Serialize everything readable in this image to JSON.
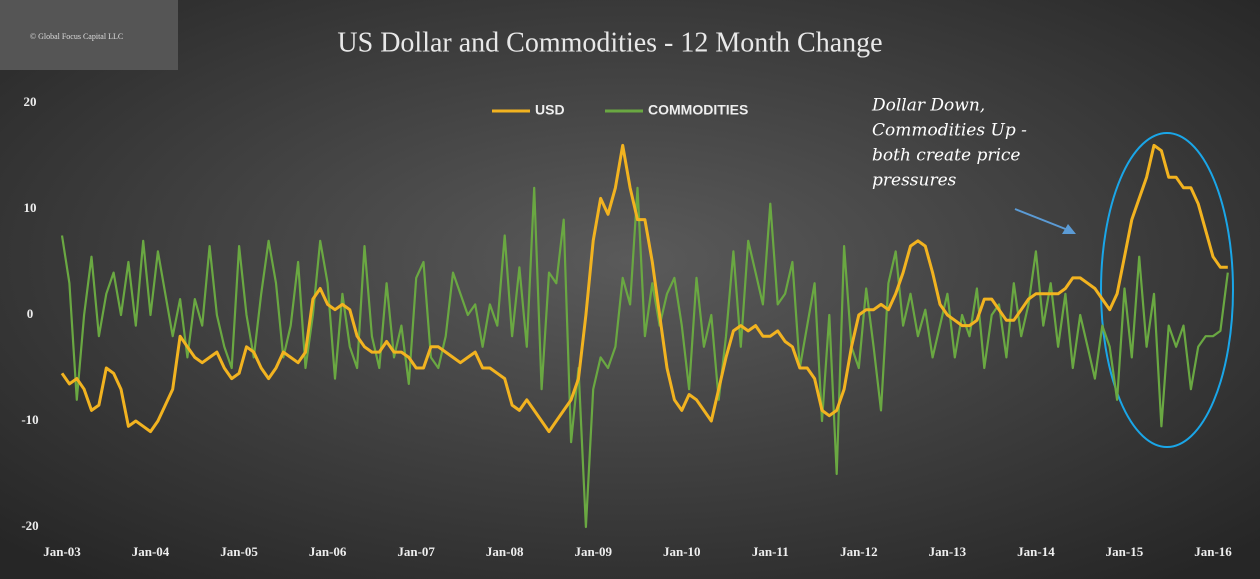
{
  "chart_data": {
    "type": "line",
    "copyright": "© Global Focus Capital LLC",
    "title": "US Dollar and Commodities  - 12 Month Change",
    "annotation": [
      "Dollar Down,",
      "Commodities Up -",
      "both create price",
      "pressures"
    ],
    "categories": [
      "Jan-03",
      null,
      null,
      null,
      null,
      null,
      null,
      null,
      null,
      null,
      null,
      null,
      "Jan-04",
      null,
      null,
      null,
      null,
      null,
      null,
      null,
      null,
      null,
      null,
      null,
      "Jan-05",
      null,
      null,
      null,
      null,
      null,
      null,
      null,
      null,
      null,
      null,
      null,
      "Jan-06",
      null,
      null,
      null,
      null,
      null,
      null,
      null,
      null,
      null,
      null,
      null,
      "Jan-07",
      null,
      null,
      null,
      null,
      null,
      null,
      null,
      null,
      null,
      null,
      null,
      "Jan-08",
      null,
      null,
      null,
      null,
      null,
      null,
      null,
      null,
      null,
      null,
      null,
      "Jan-09",
      null,
      null,
      null,
      null,
      null,
      null,
      null,
      null,
      null,
      null,
      null,
      "Jan-10",
      null,
      null,
      null,
      null,
      null,
      null,
      null,
      null,
      null,
      null,
      null,
      "Jan-11",
      null,
      null,
      null,
      null,
      null,
      null,
      null,
      null,
      null,
      null,
      null,
      "Jan-12",
      null,
      null,
      null,
      null,
      null,
      null,
      null,
      null,
      null,
      null,
      null,
      "Jan-13",
      null,
      null,
      null,
      null,
      null,
      null,
      null,
      null,
      null,
      null,
      null,
      "Jan-14",
      null,
      null,
      null,
      null,
      null,
      null,
      null,
      null,
      null,
      null,
      null,
      "Jan-15",
      null,
      null,
      null,
      null,
      null,
      null,
      null,
      null,
      null,
      null,
      null,
      "Jan-16",
      null,
      null
    ],
    "series": [
      {
        "name": "USD",
        "color": "#f2b320",
        "values": [
          -5.5,
          -6.5,
          -6,
          -7,
          -9,
          -8.5,
          -5,
          -5.5,
          -7,
          -10.5,
          -10,
          -10.5,
          -11,
          -10,
          -8.5,
          -7,
          -2,
          -3,
          -4,
          -4.5,
          -4,
          -3.5,
          -5,
          -6,
          -5.5,
          -3,
          -3.5,
          -5,
          -6,
          -5,
          -3.5,
          -4,
          -4.5,
          -3.5,
          1.5,
          2.5,
          1,
          0.5,
          1,
          0.5,
          -2,
          -3,
          -3.5,
          -3.5,
          -2.5,
          -3.5,
          -3.5,
          -4,
          -5,
          -5,
          -3,
          -3,
          -3.5,
          -4,
          -4.5,
          -4,
          -3.5,
          -5,
          -5,
          -5.5,
          -6,
          -8.5,
          -9,
          -8,
          -9,
          -10,
          -11,
          -10,
          -9,
          -8,
          -6,
          0,
          7,
          11,
          9.5,
          12,
          16,
          12,
          9,
          9,
          5,
          0,
          -5,
          -8,
          -9,
          -7.5,
          -8,
          -9,
          -10,
          -7,
          -4,
          -1.5,
          -1,
          -1.5,
          -1,
          -2,
          -2,
          -1.5,
          -2.5,
          -3,
          -5,
          -5,
          -6,
          -9,
          -9.5,
          -9,
          -7,
          -3,
          0,
          0.5,
          0.5,
          1,
          0.5,
          2,
          4,
          6.5,
          7,
          6.5,
          4,
          1,
          0,
          -0.5,
          -1,
          -1,
          -0.5,
          1.5,
          1.5,
          0.5,
          -0.5,
          -0.5,
          0.5,
          1.5,
          2,
          2,
          2,
          2,
          2.5,
          3.5,
          3.5,
          3,
          2.5,
          1.5,
          0.5,
          2,
          5.5,
          9,
          11,
          13,
          16,
          15.5,
          13,
          13,
          12,
          12,
          10.5,
          8,
          5.5,
          4.5,
          4.5
        ]
      },
      {
        "name": "COMMODITIES",
        "color": "#6aa842",
        "values": [
          7.5,
          3,
          -8,
          0,
          5.5,
          -2,
          2,
          4,
          0,
          5,
          -1,
          7,
          0,
          6,
          2,
          -2,
          1.5,
          -4,
          1.5,
          -1,
          6.5,
          0,
          -3,
          -5,
          6.5,
          0,
          -4,
          2,
          7,
          3,
          -4,
          -1,
          5,
          -5,
          0,
          7,
          3,
          -6,
          2,
          -3,
          -5,
          6.5,
          -2,
          -5,
          3,
          -4,
          -1,
          -6.5,
          3.5,
          5,
          -4,
          -5,
          -2,
          4,
          2,
          0,
          1,
          -3,
          1,
          -1,
          7.5,
          -2,
          4.5,
          -3,
          12,
          -7,
          4,
          3,
          9,
          -12,
          -5,
          -20,
          -7,
          -4,
          -5,
          -3,
          3.5,
          1,
          12,
          -2,
          3,
          -1,
          2,
          3.5,
          -1,
          -7,
          3.5,
          -3,
          0,
          -8,
          -2,
          6,
          -3,
          7,
          4,
          1,
          10.5,
          1,
          2,
          5,
          -5,
          -1,
          3,
          -10,
          0,
          -15,
          6.5,
          -3,
          -5,
          2.5,
          -3,
          -9,
          3,
          6,
          -1,
          2,
          -2,
          0.5,
          -4,
          -1,
          2,
          -4,
          0,
          -2,
          2.5,
          -5,
          0,
          1,
          -4,
          3,
          -2,
          1,
          6,
          -1,
          3,
          -3,
          2,
          -5,
          0,
          -3,
          -6,
          -1,
          -3,
          -8,
          2.5,
          -4,
          5.5,
          -3,
          2,
          -10.5,
          -1,
          -3,
          -1,
          -7,
          -3,
          -2,
          -2,
          -1.5,
          4
        ]
      }
    ],
    "ylim": [
      -20,
      20
    ],
    "yticks": [
      -20,
      -10,
      0,
      10,
      20
    ],
    "grid": false,
    "legend": "top"
  }
}
